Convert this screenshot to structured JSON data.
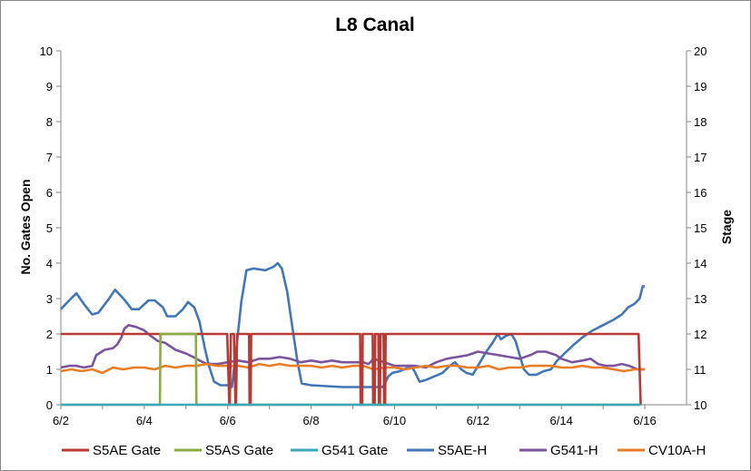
{
  "chart_data": {
    "type": "line",
    "title": "L8 Canal",
    "ylabel_left": "No. Gates Open",
    "ylabel_right": "Stage",
    "x_ticks": [
      "6/2",
      "6/4",
      "6/6",
      "6/8",
      "6/10",
      "6/12",
      "6/14",
      "6/16"
    ],
    "x_range": [
      "6/2",
      "6/17"
    ],
    "ylim_left": [
      0,
      10
    ],
    "yticks_left": [
      "0",
      "1",
      "2",
      "3",
      "4",
      "5",
      "6",
      "7",
      "8",
      "9",
      "10"
    ],
    "ylim_right": [
      10,
      20
    ],
    "yticks_right": [
      "10",
      "11",
      "12",
      "13",
      "14",
      "15",
      "16",
      "17",
      "18",
      "19",
      "20"
    ],
    "grid": false,
    "legend_position": "bottom",
    "series": [
      {
        "name": "S5AE Gate",
        "axis": "left",
        "color": "#B83A37",
        "points": [
          [
            0,
            2
          ],
          [
            15.95,
            2
          ],
          [
            16.15,
            0
          ],
          [
            16.2,
            0
          ],
          [
            16.3,
            2
          ],
          [
            16.6,
            2
          ],
          [
            16.75,
            0
          ],
          [
            16.8,
            0
          ],
          [
            16.9,
            2
          ],
          [
            18.05,
            2
          ],
          [
            18.1,
            0
          ],
          [
            18.2,
            0
          ],
          [
            18.25,
            2
          ],
          [
            28.7,
            2
          ],
          [
            28.75,
            0
          ],
          [
            28.9,
            0
          ],
          [
            28.95,
            2
          ],
          [
            29.9,
            2
          ],
          [
            29.95,
            0
          ],
          [
            30.1,
            0
          ],
          [
            30.15,
            2
          ],
          [
            30.45,
            2
          ],
          [
            30.5,
            0
          ],
          [
            30.6,
            0
          ],
          [
            30.65,
            2
          ],
          [
            30.95,
            2
          ],
          [
            31.0,
            0
          ],
          [
            31.1,
            0
          ],
          [
            31.15,
            2
          ],
          [
            55.4,
            2
          ],
          [
            55.6,
            0
          ]
        ]
      },
      {
        "name": "S5AS Gate",
        "axis": "left",
        "color": "#8CAD44",
        "points": [
          [
            0,
            0
          ],
          [
            9.5,
            0
          ],
          [
            9.55,
            2
          ],
          [
            12.95,
            2
          ],
          [
            13.0,
            0
          ],
          [
            55.6,
            0
          ]
        ]
      },
      {
        "name": "G541 Gate",
        "axis": "left",
        "color": "#3BA7BB",
        "points": [
          [
            0,
            0
          ],
          [
            55.6,
            0
          ]
        ]
      },
      {
        "name": "S5AE-H",
        "axis": "right",
        "color": "#4177B8",
        "points": [
          [
            0,
            12.7
          ],
          [
            0.8,
            12.95
          ],
          [
            1.5,
            13.15
          ],
          [
            2.2,
            12.85
          ],
          [
            3.0,
            12.55
          ],
          [
            3.6,
            12.6
          ],
          [
            4.5,
            12.95
          ],
          [
            5.2,
            13.25
          ],
          [
            6.0,
            13.0
          ],
          [
            6.8,
            12.7
          ],
          [
            7.5,
            12.7
          ],
          [
            8.4,
            12.95
          ],
          [
            9.0,
            12.95
          ],
          [
            9.8,
            12.75
          ],
          [
            10.2,
            12.5
          ],
          [
            11.0,
            12.5
          ],
          [
            11.7,
            12.7
          ],
          [
            12.2,
            12.9
          ],
          [
            12.8,
            12.75
          ],
          [
            13.3,
            12.35
          ],
          [
            13.8,
            11.6
          ],
          [
            14.2,
            11.1
          ],
          [
            14.7,
            10.65
          ],
          [
            15.3,
            10.55
          ],
          [
            16.0,
            10.55
          ],
          [
            16.4,
            10.5
          ],
          [
            16.8,
            11.5
          ],
          [
            17.3,
            12.9
          ],
          [
            17.8,
            13.8
          ],
          [
            18.5,
            13.85
          ],
          [
            19.6,
            13.8
          ],
          [
            20.4,
            13.9
          ],
          [
            20.8,
            14.0
          ],
          [
            21.2,
            13.85
          ],
          [
            21.7,
            13.2
          ],
          [
            22.2,
            12.2
          ],
          [
            22.7,
            11.2
          ],
          [
            23.1,
            10.6
          ],
          [
            24,
            10.55
          ],
          [
            27,
            10.5
          ],
          [
            29,
            10.5
          ],
          [
            30,
            10.5
          ],
          [
            30.8,
            10.5
          ],
          [
            31.0,
            10.55
          ],
          [
            31.4,
            10.8
          ],
          [
            31.8,
            10.9
          ],
          [
            32.5,
            10.95
          ],
          [
            33.3,
            11.05
          ],
          [
            33.6,
            11.1
          ],
          [
            34.0,
            10.9
          ],
          [
            34.4,
            10.65
          ],
          [
            35.0,
            10.7
          ],
          [
            35.8,
            10.8
          ],
          [
            36.6,
            10.9
          ],
          [
            37.3,
            11.1
          ],
          [
            37.8,
            11.2
          ],
          [
            38.4,
            11.0
          ],
          [
            38.9,
            10.9
          ],
          [
            39.5,
            10.85
          ],
          [
            40.2,
            11.2
          ],
          [
            40.8,
            11.5
          ],
          [
            41.4,
            11.75
          ],
          [
            41.9,
            12.0
          ],
          [
            42.2,
            11.85
          ],
          [
            42.7,
            11.95
          ],
          [
            43.2,
            12.0
          ],
          [
            43.6,
            11.8
          ],
          [
            44.0,
            11.4
          ],
          [
            44.4,
            11.0
          ],
          [
            44.9,
            10.85
          ],
          [
            45.6,
            10.85
          ],
          [
            46.3,
            10.95
          ],
          [
            47.0,
            11.0
          ],
          [
            47.6,
            11.25
          ],
          [
            48.3,
            11.45
          ],
          [
            49.2,
            11.7
          ],
          [
            50.0,
            11.9
          ],
          [
            51.0,
            12.1
          ],
          [
            52.0,
            12.25
          ],
          [
            53.0,
            12.4
          ],
          [
            53.8,
            12.55
          ],
          [
            54.4,
            12.75
          ],
          [
            55.0,
            12.85
          ],
          [
            55.5,
            13.0
          ],
          [
            55.8,
            13.35
          ],
          [
            56.0,
            13.35
          ]
        ]
      },
      {
        "name": "G541-H",
        "axis": "right",
        "color": "#7A559E",
        "points": [
          [
            0,
            11.05
          ],
          [
            0.8,
            11.1
          ],
          [
            1.5,
            11.1
          ],
          [
            2.2,
            11.05
          ],
          [
            3.0,
            11.1
          ],
          [
            3.4,
            11.4
          ],
          [
            4.2,
            11.55
          ],
          [
            5.0,
            11.6
          ],
          [
            5.4,
            11.7
          ],
          [
            5.8,
            11.9
          ],
          [
            6.1,
            12.15
          ],
          [
            6.5,
            12.25
          ],
          [
            7.2,
            12.2
          ],
          [
            8.0,
            12.1
          ],
          [
            8.6,
            11.95
          ],
          [
            9.3,
            11.8
          ],
          [
            10.0,
            11.75
          ],
          [
            11.0,
            11.55
          ],
          [
            12.0,
            11.45
          ],
          [
            12.7,
            11.35
          ],
          [
            13.3,
            11.25
          ],
          [
            14.0,
            11.15
          ],
          [
            15.0,
            11.15
          ],
          [
            16.0,
            11.2
          ],
          [
            17.0,
            11.25
          ],
          [
            18.0,
            11.2
          ],
          [
            19.0,
            11.3
          ],
          [
            20.0,
            11.3
          ],
          [
            21.0,
            11.35
          ],
          [
            22.0,
            11.3
          ],
          [
            23.0,
            11.2
          ],
          [
            24.0,
            11.25
          ],
          [
            25.0,
            11.2
          ],
          [
            26.0,
            11.25
          ],
          [
            27.0,
            11.2
          ],
          [
            28.0,
            11.2
          ],
          [
            29.0,
            11.2
          ],
          [
            29.5,
            11.15
          ],
          [
            30.0,
            11.3
          ],
          [
            31.0,
            11.2
          ],
          [
            32.0,
            11.1
          ],
          [
            33.0,
            11.1
          ],
          [
            34.0,
            11.1
          ],
          [
            35.0,
            11.05
          ],
          [
            36.0,
            11.2
          ],
          [
            37.0,
            11.3
          ],
          [
            38.0,
            11.35
          ],
          [
            39.0,
            11.4
          ],
          [
            40.0,
            11.5
          ],
          [
            41.0,
            11.45
          ],
          [
            42.0,
            11.4
          ],
          [
            43.0,
            11.35
          ],
          [
            44.0,
            11.3
          ],
          [
            45.0,
            11.4
          ],
          [
            45.7,
            11.5
          ],
          [
            46.5,
            11.5
          ],
          [
            47.5,
            11.4
          ],
          [
            48.0,
            11.3
          ],
          [
            49.0,
            11.2
          ],
          [
            50.0,
            11.25
          ],
          [
            50.8,
            11.3
          ],
          [
            51.5,
            11.15
          ],
          [
            52.3,
            11.1
          ],
          [
            53.0,
            11.1
          ],
          [
            53.8,
            11.15
          ],
          [
            54.5,
            11.1
          ],
          [
            55.3,
            11.0
          ],
          [
            56.0,
            11.0
          ]
        ]
      },
      {
        "name": "CV10A-H",
        "axis": "right",
        "color": "#E87D26",
        "points": [
          [
            0,
            10.95
          ],
          [
            1,
            11.0
          ],
          [
            2,
            10.95
          ],
          [
            3,
            11.0
          ],
          [
            4,
            10.9
          ],
          [
            5,
            11.05
          ],
          [
            6,
            11.0
          ],
          [
            7,
            11.05
          ],
          [
            8,
            11.05
          ],
          [
            9,
            11.0
          ],
          [
            10,
            11.1
          ],
          [
            11,
            11.05
          ],
          [
            12,
            11.1
          ],
          [
            13,
            11.1
          ],
          [
            14,
            11.15
          ],
          [
            15,
            11.1
          ],
          [
            16,
            11.1
          ],
          [
            17,
            11.1
          ],
          [
            18,
            11.05
          ],
          [
            19,
            11.15
          ],
          [
            20,
            11.1
          ],
          [
            21,
            11.15
          ],
          [
            22,
            11.1
          ],
          [
            23,
            11.1
          ],
          [
            24,
            11.1
          ],
          [
            25,
            11.05
          ],
          [
            26,
            11.1
          ],
          [
            27,
            11.05
          ],
          [
            28,
            11.1
          ],
          [
            29,
            11.1
          ],
          [
            30,
            11.0
          ],
          [
            31,
            11.05
          ],
          [
            32,
            11.05
          ],
          [
            33,
            11.0
          ],
          [
            34,
            11.05
          ],
          [
            35,
            11.1
          ],
          [
            36,
            11.05
          ],
          [
            37,
            11.1
          ],
          [
            38,
            11.1
          ],
          [
            39,
            11.05
          ],
          [
            40,
            11.05
          ],
          [
            41,
            11.1
          ],
          [
            42,
            11.0
          ],
          [
            43,
            11.05
          ],
          [
            44,
            11.05
          ],
          [
            45,
            11.1
          ],
          [
            46,
            11.1
          ],
          [
            47,
            11.1
          ],
          [
            48,
            11.05
          ],
          [
            49,
            11.05
          ],
          [
            50,
            11.1
          ],
          [
            51,
            11.05
          ],
          [
            52,
            11.05
          ],
          [
            53,
            11.0
          ],
          [
            54,
            10.95
          ],
          [
            55,
            11.0
          ],
          [
            56,
            11.0
          ]
        ]
      }
    ]
  }
}
